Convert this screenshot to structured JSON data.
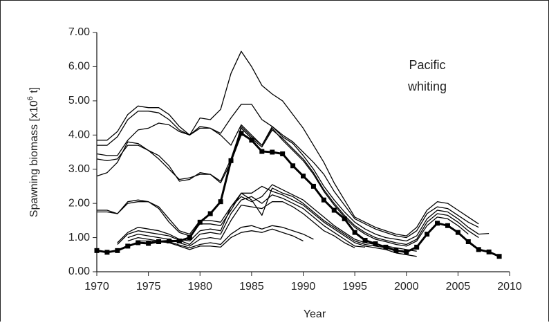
{
  "chart_data": {
    "type": "line",
    "annotation": [
      "Pacific",
      "whiting"
    ],
    "xlabel": "Year",
    "ylabel": [
      "Spawning biomass [x10",
      "6",
      " t]"
    ],
    "x": [
      1970,
      1971,
      1972,
      1973,
      1974,
      1975,
      1976,
      1977,
      1978,
      1979,
      1980,
      1981,
      1982,
      1983,
      1984,
      1985,
      1986,
      1987,
      1988,
      1989,
      1990,
      1991,
      1992,
      1993,
      1994,
      1995,
      1996,
      1997,
      1998,
      1999,
      2000,
      2001,
      2002,
      2003,
      2004,
      2005,
      2006,
      2007,
      2008,
      2009
    ],
    "xlim": [
      1970,
      2010
    ],
    "xticks": [
      1970,
      1975,
      1980,
      1985,
      1990,
      1995,
      2000,
      2005,
      2010
    ],
    "ylim": [
      0,
      7
    ],
    "yticks": [
      {
        "value": 0,
        "label": "0.00"
      },
      {
        "value": 1,
        "label": "1.00"
      },
      {
        "value": 2,
        "label": "2.00"
      },
      {
        "value": 3,
        "label": "3.00"
      },
      {
        "value": 4,
        "label": "4.00"
      },
      {
        "value": 5,
        "label": "5.00"
      },
      {
        "value": 6,
        "label": "6.00"
      },
      {
        "value": 7,
        "label": "7.00"
      }
    ],
    "series": [
      {
        "color": "#000000",
        "values": [
          3.85,
          3.85,
          4.1,
          4.6,
          4.85,
          4.8,
          4.8,
          4.6,
          4.25,
          4.0,
          4.5,
          4.45,
          4.75,
          5.8,
          6.45,
          6.0,
          5.45,
          5.2,
          5.0,
          4.6,
          4.2,
          3.7,
          3.2,
          2.6,
          2.1,
          1.6,
          1.45,
          1.3,
          1.2,
          1.1,
          1.05,
          1.3,
          1.8,
          2.05,
          2.0,
          1.8,
          1.6,
          1.4,
          null,
          null
        ]
      },
      {
        "color": "#000000",
        "values": [
          3.7,
          3.7,
          3.95,
          4.45,
          4.7,
          4.7,
          4.65,
          4.45,
          4.15,
          4.0,
          4.25,
          4.2,
          4.05,
          4.5,
          4.9,
          4.9,
          4.45,
          4.25,
          4.0,
          3.8,
          3.5,
          3.2,
          2.85,
          2.35,
          1.95,
          1.55,
          1.4,
          1.25,
          1.15,
          1.05,
          1.0,
          1.2,
          1.7,
          1.9,
          1.85,
          1.65,
          1.45,
          1.3,
          null,
          null
        ]
      },
      {
        "color": "#000000",
        "values": [
          3.45,
          3.4,
          3.4,
          3.85,
          4.15,
          4.2,
          4.35,
          4.3,
          4.1,
          4.0,
          4.2,
          4.2,
          4.0,
          3.7,
          4.3,
          4.0,
          3.7,
          4.25,
          3.95,
          3.75,
          3.4,
          3.0,
          2.5,
          2.1,
          1.75,
          1.45,
          1.25,
          1.1,
          1.0,
          0.95,
          0.9,
          1.05,
          1.55,
          1.8,
          1.75,
          1.55,
          1.3,
          1.1,
          1.12,
          null
        ]
      },
      {
        "color": "#000000",
        "values": [
          3.3,
          3.25,
          3.3,
          3.7,
          3.7,
          3.55,
          3.3,
          3.0,
          2.7,
          2.75,
          2.85,
          2.85,
          2.65,
          3.3,
          4.2,
          3.9,
          3.65,
          4.15,
          3.9,
          3.6,
          3.3,
          2.9,
          2.4,
          2.0,
          1.65,
          1.35,
          1.15,
          1.0,
          0.92,
          0.85,
          0.8,
          0.95,
          1.45,
          1.7,
          1.65,
          1.45,
          1.2,
          1.0,
          null,
          null
        ]
      },
      {
        "color": "#000000",
        "values": [
          2.8,
          2.9,
          3.2,
          3.8,
          3.75,
          3.55,
          3.4,
          3.1,
          2.65,
          2.7,
          2.9,
          2.85,
          2.6,
          3.2,
          4.25,
          3.95,
          3.7,
          4.2,
          3.85,
          3.55,
          3.25,
          2.85,
          2.35,
          1.95,
          1.6,
          1.3,
          1.1,
          0.95,
          0.88,
          0.8,
          0.75,
          0.9,
          1.35,
          1.6,
          1.55,
          1.35,
          1.1,
          null,
          null,
          null
        ]
      },
      {
        "color": "#000000",
        "values": [
          1.8,
          1.8,
          1.7,
          2.05,
          2.1,
          2.05,
          1.9,
          1.55,
          1.2,
          1.1,
          1.5,
          1.5,
          1.45,
          1.9,
          2.2,
          2.05,
          2.2,
          2.55,
          2.4,
          2.25,
          2.1,
          1.85,
          1.6,
          1.35,
          1.15,
          0.95,
          0.85,
          0.8,
          0.75,
          0.7,
          0.65,
          0.6,
          null,
          null,
          null,
          null,
          null,
          null,
          null,
          null
        ]
      },
      {
        "color": "#000000",
        "values": [
          1.75,
          1.75,
          1.7,
          2.0,
          2.05,
          2.05,
          1.85,
          1.45,
          1.15,
          1.05,
          1.4,
          1.4,
          1.35,
          1.8,
          2.3,
          2.1,
          1.65,
          2.45,
          2.3,
          2.2,
          2.0,
          1.75,
          1.5,
          1.3,
          1.1,
          0.9,
          0.8,
          0.75,
          0.7,
          0.62,
          0.55,
          null,
          null,
          null,
          null,
          null,
          null,
          null,
          null,
          null
        ]
      },
      {
        "color": "#000000",
        "values": [
          null,
          null,
          0.85,
          1.15,
          1.3,
          1.25,
          1.2,
          1.1,
          0.95,
          0.9,
          1.2,
          1.25,
          1.2,
          1.9,
          2.3,
          2.3,
          2.5,
          2.35,
          2.25,
          2.1,
          1.95,
          1.7,
          1.45,
          1.25,
          1.05,
          0.85,
          0.75,
          0.7,
          0.65,
          0.55,
          0.5,
          0.45,
          null,
          null,
          null,
          null,
          null,
          null,
          null,
          null
        ]
      },
      {
        "color": "#000000",
        "values": [
          null,
          null,
          0.8,
          1.1,
          1.2,
          1.15,
          1.1,
          1.05,
          0.92,
          0.8,
          1.1,
          1.15,
          1.1,
          1.7,
          2.1,
          2.2,
          2.0,
          2.25,
          2.15,
          2.0,
          1.85,
          1.6,
          1.35,
          1.15,
          0.95,
          0.75,
          0.72,
          null,
          null,
          null,
          null,
          null,
          null,
          null,
          null,
          null,
          null,
          null,
          null,
          null
        ]
      },
      {
        "color": "#000000",
        "values": [
          null,
          null,
          null,
          1.0,
          1.1,
          1.05,
          1.0,
          0.95,
          0.85,
          0.75,
          0.95,
          1.0,
          0.95,
          1.5,
          1.95,
          1.9,
          1.85,
          2.05,
          2.05,
          1.9,
          1.7,
          1.45,
          1.2,
          1.05,
          0.85,
          0.7,
          null,
          null,
          null,
          null,
          null,
          null,
          null,
          null,
          null,
          null,
          null,
          null,
          null,
          null
        ]
      },
      {
        "color": "#000000",
        "values": [
          null,
          null,
          null,
          0.9,
          1.0,
          0.95,
          0.9,
          0.88,
          0.78,
          0.7,
          0.8,
          0.85,
          0.8,
          1.1,
          1.3,
          1.35,
          1.25,
          1.35,
          1.3,
          1.2,
          1.1,
          0.95,
          null,
          null,
          null,
          null,
          null,
          null,
          null,
          null,
          null,
          null,
          null,
          null,
          null,
          null,
          null,
          null,
          null,
          null
        ]
      },
      {
        "color": "#000000",
        "values": [
          null,
          null,
          null,
          null,
          0.9,
          0.9,
          0.88,
          0.85,
          0.75,
          0.65,
          0.75,
          0.75,
          0.72,
          1.0,
          1.15,
          1.2,
          1.15,
          1.25,
          1.15,
          1.05,
          0.9,
          null,
          null,
          null,
          null,
          null,
          null,
          null,
          null,
          null,
          null,
          null,
          null,
          null,
          null,
          null,
          null,
          null,
          null,
          null
        ]
      },
      {
        "color": "#000000",
        "markers": true,
        "values": [
          0.62,
          0.57,
          0.62,
          0.75,
          0.85,
          0.83,
          0.88,
          0.9,
          0.9,
          1.0,
          1.45,
          1.7,
          2.05,
          3.25,
          4.05,
          3.85,
          3.52,
          3.5,
          3.45,
          3.1,
          2.8,
          2.5,
          2.1,
          1.8,
          1.55,
          1.15,
          0.92,
          0.82,
          0.72,
          0.62,
          0.58,
          0.72,
          1.1,
          1.42,
          1.35,
          1.15,
          0.88,
          0.65,
          0.58,
          0.45
        ]
      }
    ]
  }
}
